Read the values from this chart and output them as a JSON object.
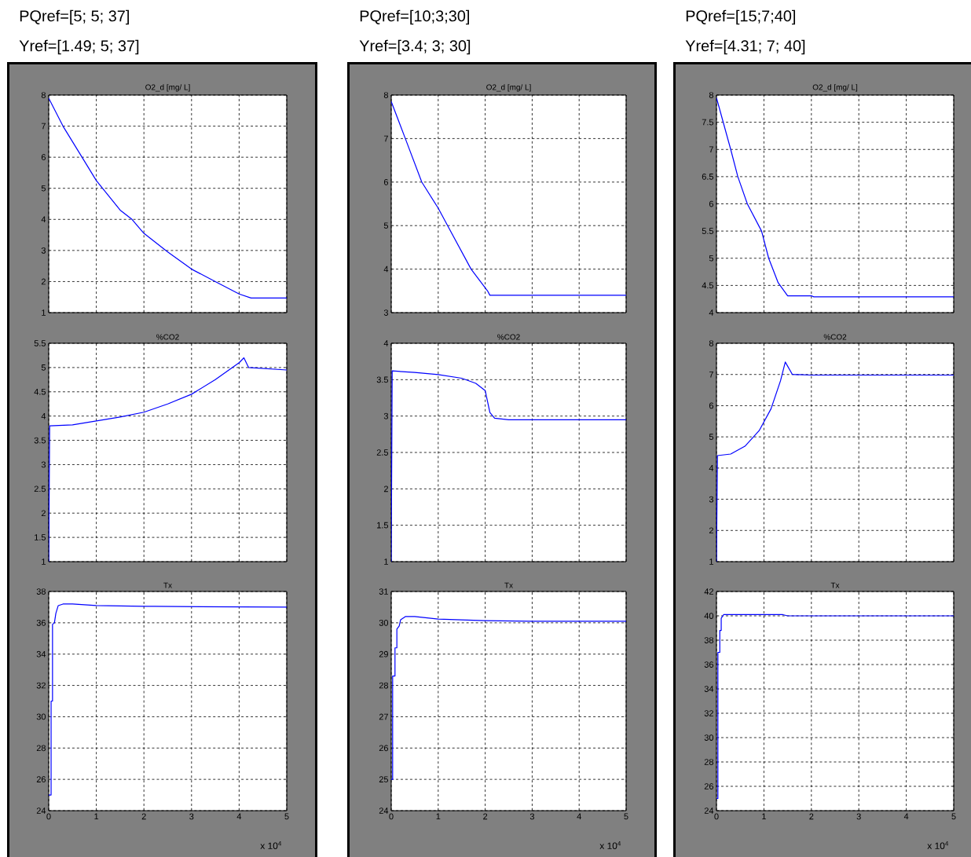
{
  "chart_data": [
    {
      "type": "line",
      "title": "O2_d [mg/ L]",
      "annotations": [
        "PQref=[5; 5; 37]",
        "Yref=[1.49; 5; 37]"
      ],
      "color": "#0000ff",
      "grid": true,
      "tick_labels": "y",
      "xlim": [
        0,
        5
      ],
      "xticks": [
        0,
        1,
        2,
        3,
        4,
        5
      ],
      "ylim": [
        1,
        8
      ],
      "yticks": [
        1,
        2,
        3,
        4,
        5,
        6,
        7,
        8
      ],
      "x": [
        0,
        0.3,
        0.7,
        1.0,
        1.5,
        1.75,
        2.0,
        2.5,
        3.0,
        3.5,
        4.0,
        4.25,
        5
      ],
      "values": [
        7.9,
        7.0,
        6.0,
        5.25,
        4.3,
        4.0,
        3.55,
        2.95,
        2.4,
        2.0,
        1.6,
        1.47,
        1.47
      ]
    },
    {
      "type": "line",
      "title": "O2_d [mg/ L]",
      "annotations": [
        "PQref=[10;3;30]",
        "Yref=[3.4; 3; 30]"
      ],
      "color": "#0000ff",
      "grid": true,
      "tick_labels": "y",
      "xlim": [
        0,
        5
      ],
      "xticks": [
        0,
        1,
        2,
        3,
        4,
        5
      ],
      "ylim": [
        3,
        8
      ],
      "yticks": [
        3,
        4,
        5,
        6,
        7,
        8
      ],
      "x": [
        0,
        0.3,
        0.65,
        1.0,
        1.2,
        1.7,
        2.05,
        2.1,
        5
      ],
      "values": [
        7.85,
        7.0,
        6.0,
        5.4,
        5.0,
        4.0,
        3.5,
        3.4,
        3.4
      ]
    },
    {
      "type": "line",
      "title": "O2_d [mg/ L]",
      "annotations": [
        "PQref=[15;7;40]",
        "Yref=[4.31; 7; 40]"
      ],
      "color": "#0000ff",
      "grid": true,
      "tick_labels": "y",
      "xlim": [
        0,
        5
      ],
      "xticks": [
        0,
        1,
        2,
        3,
        4,
        5
      ],
      "ylim": [
        4,
        8
      ],
      "yticks": [
        4,
        4.5,
        5,
        5.5,
        6,
        6.5,
        7,
        7.5,
        8
      ],
      "x": [
        0,
        0.3,
        0.45,
        0.65,
        0.95,
        1.1,
        1.3,
        1.5,
        2.0,
        2.05,
        5
      ],
      "values": [
        7.95,
        7.0,
        6.5,
        6.0,
        5.5,
        5.0,
        4.55,
        4.31,
        4.31,
        4.29,
        4.29
      ]
    },
    {
      "type": "line",
      "title": "%CO2",
      "color": "#0000ff",
      "grid": true,
      "tick_labels": "y",
      "xlim": [
        0,
        5
      ],
      "xticks": [
        0,
        1,
        2,
        3,
        4,
        5
      ],
      "ylim": [
        1,
        5.5
      ],
      "yticks": [
        1,
        1.5,
        2,
        2.5,
        3,
        3.5,
        4,
        4.5,
        5,
        5.5
      ],
      "x": [
        0,
        0.02,
        0.5,
        1.0,
        1.5,
        2.0,
        2.5,
        3.0,
        3.5,
        4.0,
        4.1,
        4.2,
        5
      ],
      "values": [
        1,
        3.8,
        3.82,
        3.9,
        3.98,
        4.08,
        4.25,
        4.45,
        4.75,
        5.1,
        5.2,
        5.0,
        4.95
      ]
    },
    {
      "type": "line",
      "title": "%CO2",
      "color": "#0000ff",
      "grid": true,
      "tick_labels": "y",
      "xlim": [
        0,
        5
      ],
      "xticks": [
        0,
        1,
        2,
        3,
        4,
        5
      ],
      "ylim": [
        1,
        4
      ],
      "yticks": [
        1,
        1.5,
        2,
        2.5,
        3,
        3.5,
        4
      ],
      "x": [
        0,
        0.02,
        0.5,
        1.0,
        1.5,
        1.8,
        2.0,
        2.05,
        2.1,
        2.2,
        2.5,
        3.0,
        4.0,
        5
      ],
      "values": [
        1,
        3.62,
        3.6,
        3.57,
        3.52,
        3.45,
        3.35,
        3.2,
        3.05,
        2.97,
        2.95,
        2.95,
        2.95,
        2.95
      ]
    },
    {
      "type": "line",
      "title": "%CO2",
      "color": "#0000ff",
      "grid": true,
      "tick_labels": "y",
      "xlim": [
        0,
        5
      ],
      "xticks": [
        0,
        1,
        2,
        3,
        4,
        5
      ],
      "ylim": [
        1,
        8
      ],
      "yticks": [
        1,
        2,
        3,
        4,
        5,
        6,
        7,
        8
      ],
      "x": [
        0,
        0.02,
        0.3,
        0.6,
        0.9,
        1.15,
        1.35,
        1.45,
        1.6,
        2.0,
        5
      ],
      "values": [
        1,
        4.4,
        4.45,
        4.7,
        5.2,
        5.9,
        6.8,
        7.4,
        7.0,
        6.98,
        6.98
      ]
    },
    {
      "type": "line",
      "title": "Tx",
      "annotations": [
        "x 10$^{4}$"
      ],
      "color": "#0000ff",
      "grid": true,
      "xlim": [
        0,
        5
      ],
      "xticks": [
        0,
        1,
        2,
        3,
        4,
        5
      ],
      "ylim": [
        24,
        38
      ],
      "yticks": [
        24,
        26,
        28,
        30,
        32,
        34,
        36,
        38
      ],
      "x": [
        0,
        0.05,
        0.05,
        0.08,
        0.08,
        0.12,
        0.15,
        0.2,
        0.3,
        0.5,
        1.0,
        2.0,
        2.2,
        5
      ],
      "values": [
        25,
        25,
        31,
        31,
        35.9,
        36,
        36.6,
        37.1,
        37.2,
        37.2,
        37.1,
        37.05,
        37.05,
        37.0
      ]
    },
    {
      "type": "line",
      "title": "Tx",
      "annotations": [
        "x 10$^{4}$"
      ],
      "color": "#0000ff",
      "grid": true,
      "xlim": [
        0,
        5
      ],
      "xticks": [
        0,
        1,
        2,
        3,
        4,
        5
      ],
      "ylim": [
        24,
        31
      ],
      "yticks": [
        24,
        25,
        26,
        27,
        28,
        29,
        30,
        31
      ],
      "x": [
        0,
        0.03,
        0.03,
        0.08,
        0.08,
        0.12,
        0.12,
        0.17,
        0.2,
        0.3,
        0.5,
        1.0,
        2.0,
        3.0,
        5
      ],
      "values": [
        25,
        25,
        28.3,
        28.3,
        29.2,
        29.2,
        29.8,
        29.9,
        30.1,
        30.2,
        30.2,
        30.12,
        30.07,
        30.05,
        30.05
      ]
    },
    {
      "type": "line",
      "title": "Tx",
      "annotations": [
        "x 10$^{4}$"
      ],
      "color": "#0000ff",
      "grid": true,
      "xlim": [
        0,
        5
      ],
      "xticks": [
        0,
        1,
        2,
        3,
        4,
        5
      ],
      "ylim": [
        24,
        42
      ],
      "yticks": [
        24,
        26,
        28,
        30,
        32,
        34,
        36,
        38,
        40,
        42
      ],
      "x": [
        0,
        0.03,
        0.03,
        0.07,
        0.07,
        0.1,
        0.1,
        0.15,
        1.4,
        1.5,
        5
      ],
      "values": [
        25,
        25,
        37,
        37,
        38.8,
        38.8,
        39.8,
        40.1,
        40.1,
        40.0,
        40.0
      ]
    }
  ]
}
